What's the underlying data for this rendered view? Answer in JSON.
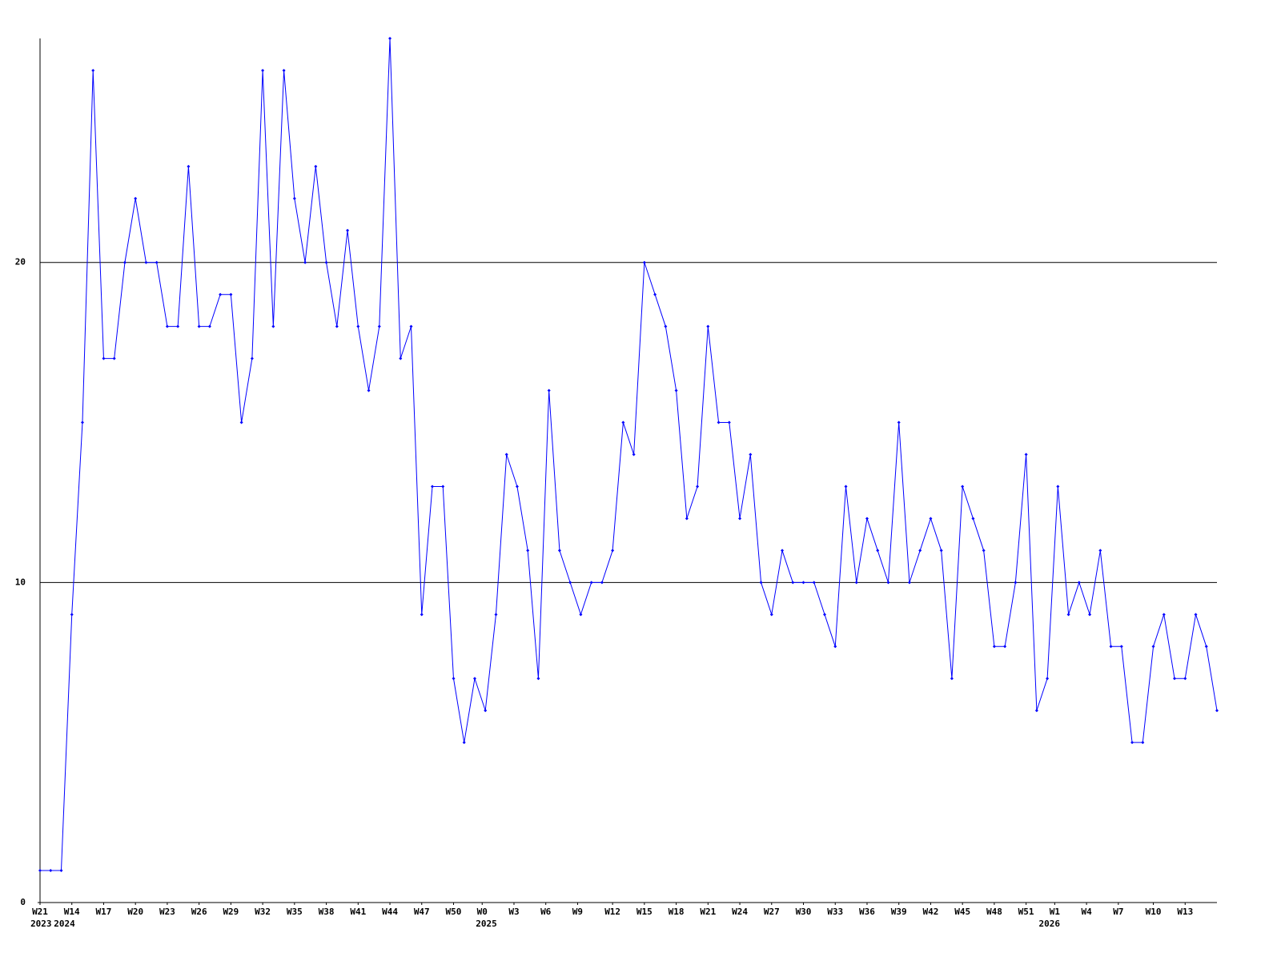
{
  "chart_data": {
    "type": "line",
    "x": [
      0,
      1,
      2,
      3,
      4,
      5,
      6,
      7,
      8,
      9,
      10,
      11,
      12,
      13,
      14,
      15,
      16,
      17,
      18,
      19,
      20,
      21,
      22,
      23,
      24,
      25,
      26,
      27,
      28,
      29,
      30,
      31,
      32,
      33,
      34,
      35,
      36,
      37,
      38,
      39,
      40,
      41,
      42,
      43,
      44,
      45,
      46,
      47,
      48,
      49,
      50,
      51,
      52,
      53,
      54,
      55,
      56,
      57,
      58,
      59,
      60,
      61,
      62,
      63,
      64,
      65,
      66,
      67,
      68,
      69,
      70,
      71,
      72,
      73,
      74,
      75,
      76,
      77,
      78,
      79,
      80,
      81,
      82,
      83,
      84,
      85,
      86,
      87,
      88,
      89,
      90,
      91,
      92,
      93,
      94,
      95,
      96,
      97,
      98,
      99,
      100,
      101,
      102,
      103,
      104,
      105,
      106,
      107,
      108,
      109,
      110,
      111
    ],
    "series": [
      {
        "color": "#0000ff",
        "values": [
          1,
          1,
          1,
          9,
          15,
          26,
          17,
          17,
          20,
          22,
          20,
          20,
          18,
          18,
          23,
          18,
          18,
          19,
          19,
          15,
          17,
          26,
          18,
          26,
          22,
          20,
          23,
          20,
          18,
          21,
          18,
          16,
          18,
          27,
          17,
          18,
          9,
          13,
          13,
          7,
          5,
          7,
          6,
          9,
          14,
          13,
          11,
          7,
          16,
          11,
          10,
          9,
          10,
          10,
          11,
          15,
          14,
          20,
          19,
          18,
          16,
          12,
          13,
          18,
          15,
          15,
          12,
          14,
          10,
          9,
          11,
          10,
          10,
          10,
          9,
          8,
          13,
          10,
          12,
          11,
          10,
          15,
          10,
          11,
          12,
          11,
          7,
          13,
          12,
          11,
          8,
          8,
          10,
          14,
          6,
          7,
          13,
          9,
          10,
          9,
          11,
          8,
          8,
          5,
          5,
          8,
          9,
          7,
          7,
          9,
          8,
          6
        ]
      }
    ],
    "xlim": [
      0,
      111
    ],
    "xticks": [
      {
        "value": 0,
        "label": "W21"
      },
      {
        "value": 3,
        "label": "W14"
      },
      {
        "value": 6,
        "label": "W17"
      },
      {
        "value": 9,
        "label": "W20"
      },
      {
        "value": 12,
        "label": "W23"
      },
      {
        "value": 15,
        "label": "W26"
      },
      {
        "value": 18,
        "label": "W29"
      },
      {
        "value": 21,
        "label": "W32"
      },
      {
        "value": 24,
        "label": "W35"
      },
      {
        "value": 27,
        "label": "W38"
      },
      {
        "value": 30,
        "label": "W41"
      },
      {
        "value": 33,
        "label": "W44"
      },
      {
        "value": 36,
        "label": "W47"
      },
      {
        "value": 39,
        "label": "W50"
      },
      {
        "value": 41.7,
        "label": "W0"
      },
      {
        "value": 44.7,
        "label": "W3"
      },
      {
        "value": 47.7,
        "label": "W6"
      },
      {
        "value": 50.7,
        "label": "W9"
      },
      {
        "value": 54,
        "label": "W12"
      },
      {
        "value": 57,
        "label": "W15"
      },
      {
        "value": 60,
        "label": "W18"
      },
      {
        "value": 63,
        "label": "W21"
      },
      {
        "value": 66,
        "label": "W24"
      },
      {
        "value": 69,
        "label": "W27"
      },
      {
        "value": 72,
        "label": "W30"
      },
      {
        "value": 75,
        "label": "W33"
      },
      {
        "value": 78,
        "label": "W36"
      },
      {
        "value": 81,
        "label": "W39"
      },
      {
        "value": 84,
        "label": "W42"
      },
      {
        "value": 87,
        "label": "W45"
      },
      {
        "value": 90,
        "label": "W48"
      },
      {
        "value": 93,
        "label": "W51"
      },
      {
        "value": 95.7,
        "label": "W1"
      },
      {
        "value": 98.7,
        "label": "W4"
      },
      {
        "value": 101.7,
        "label": "W7"
      },
      {
        "value": 105,
        "label": "W10"
      },
      {
        "value": 108,
        "label": "W13"
      }
    ],
    "year_labels": [
      {
        "value": 0.1,
        "label": "2023"
      },
      {
        "value": 2.3,
        "label": "2024"
      },
      {
        "value": 42.1,
        "label": "2025"
      },
      {
        "value": 95.2,
        "label": "2026"
      }
    ],
    "ylim": [
      0,
      27
    ],
    "yticks": [
      0,
      10,
      20
    ],
    "grid": true
  }
}
